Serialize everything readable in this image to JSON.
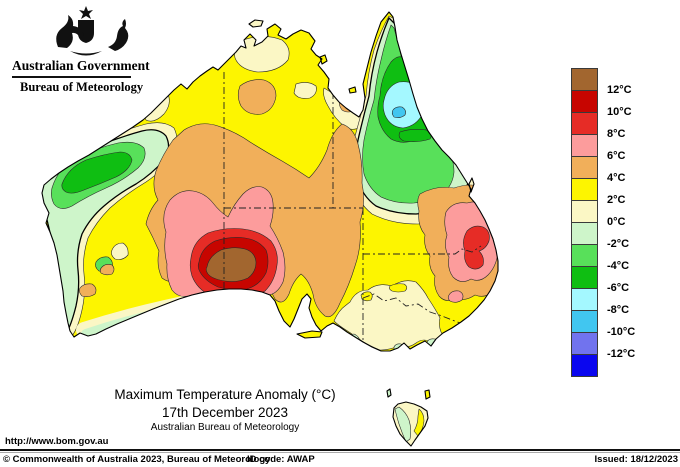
{
  "header": {
    "gov_title": "Australian Government",
    "dept_title": "Bureau of Meteorology"
  },
  "titles": {
    "main": "Maximum Temperature Anomaly (°C)",
    "date": "17th December 2023",
    "org": "Australian Bureau of Meteorology"
  },
  "footer": {
    "url": "http://www.bom.gov.au",
    "copyright": "© Commonwealth of Australia 2023, Bureau of Meteorology",
    "id_code": "ID code: AWAP",
    "issued": "Issued: 18/12/2023"
  },
  "legend": {
    "entries": [
      {
        "color": "#A2662F",
        "label": "12°C"
      },
      {
        "color": "#C70500",
        "label": "10°C"
      },
      {
        "color": "#E62C26",
        "label": "8°C"
      },
      {
        "color": "#FC9C9C",
        "label": "6°C"
      },
      {
        "color": "#F1AF5A",
        "label": "4°C"
      },
      {
        "color": "#FDF500",
        "label": "2°C"
      },
      {
        "color": "#FBF7C5",
        "label": "0°C"
      },
      {
        "color": "#CEF5CA",
        "label": "-2°C"
      },
      {
        "color": "#58E05A",
        "label": "-4°C"
      },
      {
        "color": "#0FBE12",
        "label": "-6°C"
      },
      {
        "color": "#A4F8FF",
        "label": "-8°C"
      },
      {
        "color": "#41C6F0",
        "label": "-10°C"
      },
      {
        "color": "#7173EE",
        "label": "-12°C"
      },
      {
        "color": "#0A06EF",
        "label": null
      }
    ]
  },
  "map": {
    "palette": {
      "sea": "#FFFFFF",
      "yellow": "#FDF500",
      "cream": "#FBF7C5",
      "pale_green": "#CEF5CA",
      "green": "#58E05A",
      "dark_green": "#0FBE12",
      "cyan": "#A4F8FF",
      "sky_blue": "#41C6F0",
      "orange": "#F1AF5A",
      "pink": "#FC9C9C",
      "red": "#E62C26",
      "dark_red": "#C70500",
      "brown": "#A2662F",
      "blue_purple": "#7173EE",
      "blue": "#0A06EF"
    }
  }
}
